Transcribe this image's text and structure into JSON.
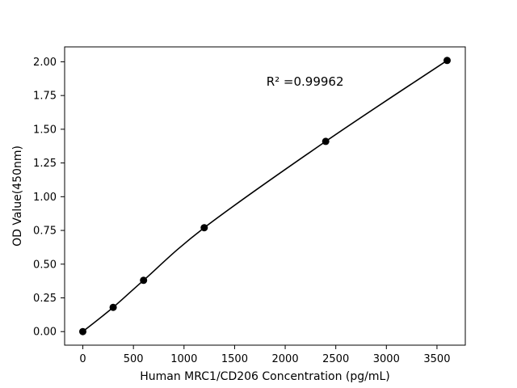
{
  "figure": {
    "background": "#ffffff",
    "foreground": "#000000"
  },
  "chart_data": {
    "type": "scatter",
    "title": "",
    "xlabel": "Human MRC1/CD206 Concentration (pg/mL)",
    "ylabel": "OD Value(450nm)",
    "annotation": "R² =0.99962",
    "x": [
      0,
      300,
      600,
      1200,
      2400,
      3600
    ],
    "y": [
      0.0,
      0.18,
      0.38,
      0.77,
      1.41,
      2.01
    ],
    "xlim": [
      -180,
      3780
    ],
    "ylim": [
      -0.1005,
      2.1105
    ],
    "xticks": [
      0,
      500,
      1000,
      1500,
      2000,
      2500,
      3000,
      3500
    ],
    "xtick_labels": [
      "0",
      "500",
      "1000",
      "1500",
      "2000",
      "2500",
      "3000",
      "3500"
    ],
    "yticks": [
      0.0,
      0.25,
      0.5,
      0.75,
      1.0,
      1.25,
      1.5,
      1.75,
      2.0
    ],
    "ytick_labels": [
      "0.00",
      "0.25",
      "0.50",
      "0.75",
      "1.00",
      "1.25",
      "1.50",
      "1.75",
      "2.00"
    ],
    "grid": false,
    "legend_position": null,
    "marker_color": "#000000",
    "line_color": "#000000",
    "curve_style": "smooth-fit-line"
  }
}
